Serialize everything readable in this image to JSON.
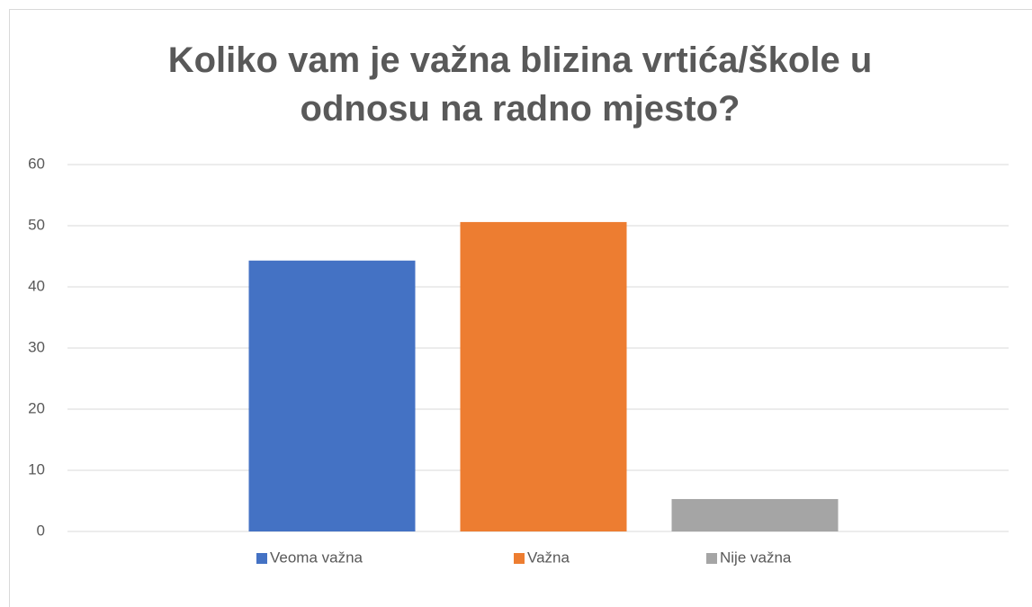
{
  "chart_data": {
    "type": "bar",
    "title": "Koliko vam je važna blizina vrtića/škole u odnosu na radno mjesto?",
    "series": [
      {
        "name": "Veoma važna",
        "color": "#4472c4",
        "values": [
          44.3
        ]
      },
      {
        "name": "Važna",
        "color": "#ed7d31",
        "values": [
          50.6
        ]
      },
      {
        "name": "Nije važna",
        "color": "#a5a5a5",
        "values": [
          5.3
        ]
      }
    ],
    "ylim": [
      0,
      60
    ],
    "yticks": [
      0,
      10,
      20,
      30,
      40,
      50,
      60
    ],
    "grid": true,
    "legend": "bottom"
  }
}
